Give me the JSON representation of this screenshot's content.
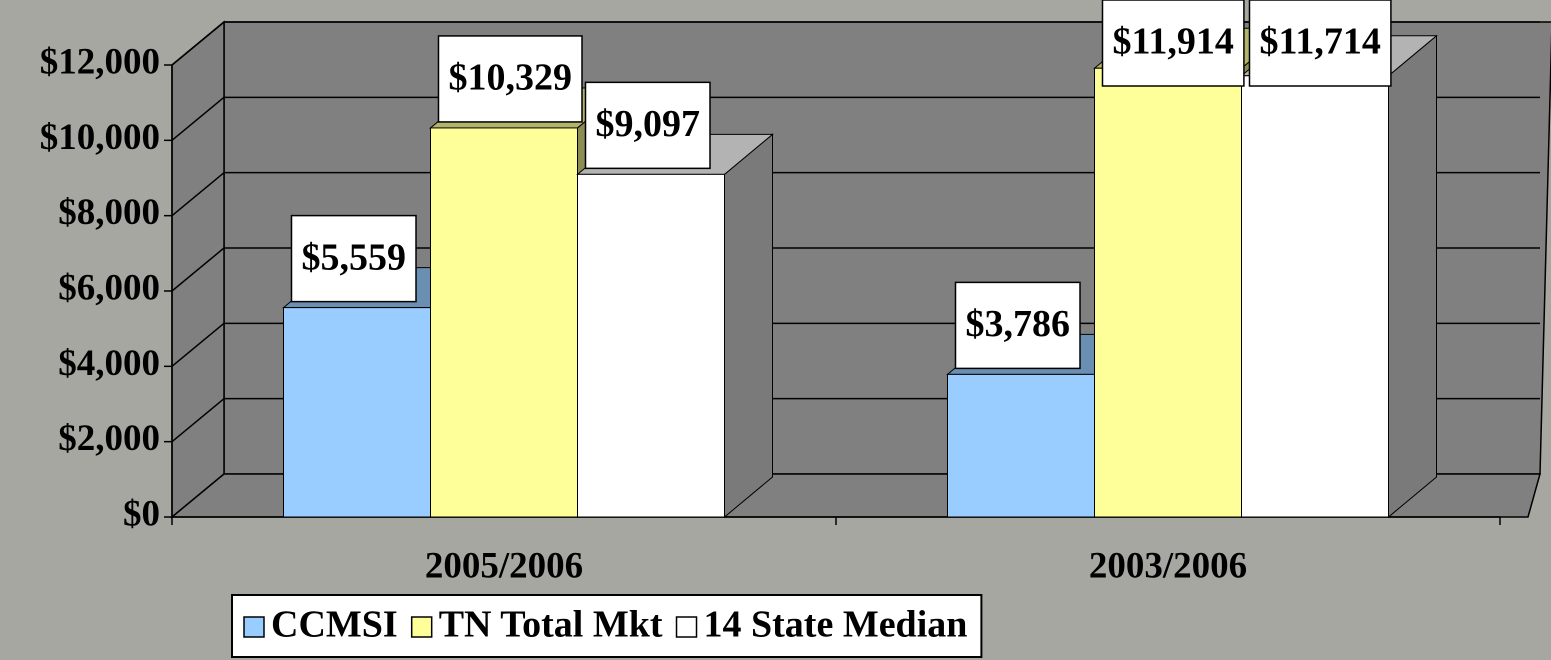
{
  "chart_data": {
    "type": "bar",
    "categories": [
      "2005/2006",
      "2003/2006"
    ],
    "series": [
      {
        "name": "CCMSI",
        "color": "#99ccff",
        "values": [
          5559,
          3786
        ],
        "value_labels": [
          "$5,559",
          "$3,786"
        ]
      },
      {
        "name": "TN Total Mkt",
        "color": "#ffff99",
        "values": [
          10329,
          11914
        ],
        "value_labels": [
          "$10,329",
          "$11,914"
        ]
      },
      {
        "name": "14 State Median",
        "color": "#ffffff",
        "values": [
          9097,
          11714
        ],
        "value_labels": [
          "$9,097",
          "$11,714"
        ]
      }
    ],
    "ylim": [
      0,
      12000
    ],
    "yticks": [
      {
        "value": 0,
        "label": "$0"
      },
      {
        "value": 2000,
        "label": "$2,000"
      },
      {
        "value": 4000,
        "label": "$4,000"
      },
      {
        "value": 6000,
        "label": "$6,000"
      },
      {
        "value": 8000,
        "label": "$8,000"
      },
      {
        "value": 10000,
        "label": "$10,000"
      },
      {
        "value": 12000,
        "label": "$12,000"
      }
    ],
    "grid": true,
    "legend": "bottom"
  }
}
